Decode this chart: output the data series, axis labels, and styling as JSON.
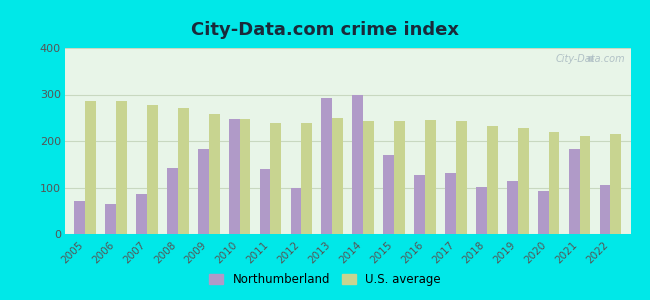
{
  "title": "City-Data.com crime index",
  "years": [
    2005,
    2006,
    2007,
    2008,
    2009,
    2010,
    2011,
    2012,
    2013,
    2014,
    2015,
    2016,
    2017,
    2018,
    2019,
    2020,
    2021,
    2022
  ],
  "northumberland": [
    70,
    65,
    85,
    143,
    183,
    248,
    140,
    100,
    293,
    300,
    170,
    127,
    132,
    102,
    115,
    92,
    182,
    105
  ],
  "us_average": [
    285,
    285,
    278,
    270,
    257,
    248,
    238,
    238,
    250,
    243,
    243,
    245,
    242,
    232,
    228,
    220,
    210,
    215
  ],
  "northumberland_color": "#b09ac8",
  "us_average_color": "#c8d490",
  "background_color": "#00e8e8",
  "plot_bg_color": "#e8f5e8",
  "ylim": [
    0,
    400
  ],
  "yticks": [
    0,
    100,
    200,
    300,
    400
  ],
  "bar_width": 0.35,
  "watermark": "City-Data.com",
  "legend_northumberland": "Northumberland",
  "legend_us": "U.S. average",
  "title_color": "#1a2a3a",
  "grid_color": "#c8d8c0",
  "ytick_color": "#555555",
  "xtick_color": "#555555"
}
